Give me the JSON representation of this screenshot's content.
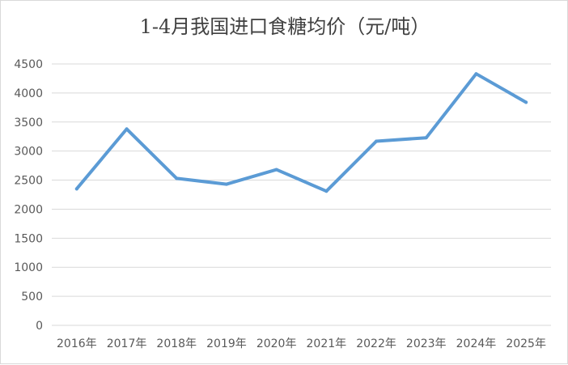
{
  "chart_data": {
    "type": "line",
    "title": "1-4月我国进口食糖均价（元/吨）",
    "xlabel": "",
    "ylabel": "",
    "categories": [
      "2016年",
      "2017年",
      "2018年",
      "2019年",
      "2020年",
      "2021年",
      "2022年",
      "2023年",
      "2024年",
      "2025年"
    ],
    "series": [
      {
        "values": [
          2350,
          3380,
          2530,
          2430,
          2680,
          2310,
          3170,
          3230,
          4330,
          3840
        ],
        "color": "#5b9bd5"
      }
    ],
    "ylim": [
      0,
      4500
    ],
    "yticks": [
      0,
      500,
      1000,
      1500,
      2000,
      2500,
      3000,
      3500,
      4000,
      4500
    ],
    "ytick_labels": [
      "0",
      "500",
      "1000",
      "1500",
      "2000",
      "2500",
      "3000",
      "3500",
      "4000",
      "4500"
    ],
    "grid": true,
    "legend": "none"
  }
}
